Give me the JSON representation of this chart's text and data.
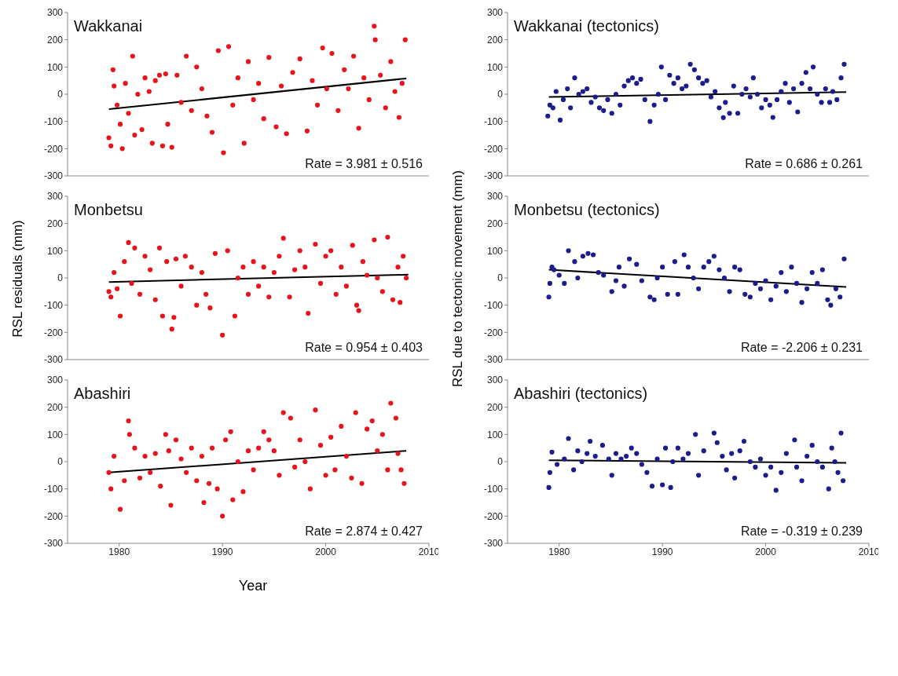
{
  "chart_data": [
    {
      "type": "scatter",
      "title": "Wakkanai",
      "annotations": [
        "Rate = 3.981 ± 0.516"
      ],
      "xlim": [
        1975,
        2010
      ],
      "xticks": [
        1980,
        1990,
        2000,
        2010
      ],
      "ylim": [
        -300,
        300
      ],
      "yticks": [
        -300,
        -200,
        -100,
        0,
        100,
        200,
        300
      ],
      "tick_labels": "y",
      "marker": "circle",
      "series": [
        {
          "color": "#e8141c",
          "x": [
            1979.0,
            1979.2,
            1979.4,
            1979.5,
            1979.8,
            1980.1,
            1980.3,
            1980.6,
            1980.9,
            1981.3,
            1981.5,
            1981.8,
            1982.2,
            1982.5,
            1982.9,
            1983.2,
            1983.5,
            1983.9,
            1984.2,
            1984.5,
            1984.7,
            1985.1,
            1985.6,
            1986.0,
            1986.5,
            1987.0,
            1987.5,
            1988.0,
            1988.5,
            1989.0,
            1989.6,
            1990.1,
            1990.6,
            1991.0,
            1991.5,
            1992.1,
            1992.5,
            1993.0,
            1993.5,
            1994.0,
            1994.5,
            1995.2,
            1995.7,
            1996.2,
            1996.8,
            1997.5,
            1998.2,
            1998.7,
            1999.2,
            1999.7,
            2000.1,
            2000.6,
            2001.2,
            2001.8,
            2002.2,
            2002.7,
            2003.2,
            2003.7,
            2004.2,
            2004.7,
            2004.8,
            2005.3,
            2005.8,
            2006.3,
            2006.7,
            2007.1,
            2007.4,
            2007.7
          ],
          "values": [
            -160,
            -190,
            90,
            30,
            -40,
            -110,
            -200,
            40,
            -70,
            140,
            -150,
            0,
            -130,
            60,
            10,
            -180,
            50,
            70,
            -190,
            75,
            -110,
            -195,
            70,
            -30,
            140,
            -60,
            100,
            20,
            -80,
            -140,
            160,
            -215,
            175,
            -40,
            60,
            -180,
            120,
            -20,
            40,
            -90,
            135,
            -120,
            30,
            -145,
            80,
            130,
            -135,
            50,
            -40,
            170,
            20,
            150,
            -60,
            90,
            20,
            140,
            -125,
            60,
            -20,
            250,
            200,
            70,
            -50,
            120,
            10,
            -85,
            40,
            200
          ]
        },
        {
          "type": "line",
          "marker": "none",
          "color": "#000000",
          "x": [
            1979,
            2007.8
          ],
          "values": [
            -55,
            58
          ]
        }
      ]
    },
    {
      "type": "scatter",
      "title": "Wakkanai (tectonics)",
      "annotations": [
        "Rate = 0.686 ± 0.261"
      ],
      "xlim": [
        1975,
        2010
      ],
      "xticks": [
        1980,
        1990,
        2000,
        2010
      ],
      "ylim": [
        -300,
        300
      ],
      "yticks": [
        -300,
        -200,
        -100,
        0,
        100,
        200,
        300
      ],
      "tick_labels": "y",
      "marker": "circle",
      "series": [
        {
          "color": "#1c1c8c",
          "x": [
            1978.9,
            1979.1,
            1979.4,
            1979.7,
            1980.1,
            1980.4,
            1980.8,
            1981.1,
            1981.5,
            1981.9,
            1982.3,
            1982.7,
            1983.1,
            1983.5,
            1983.9,
            1984.3,
            1984.7,
            1985.1,
            1985.5,
            1985.9,
            1986.3,
            1986.7,
            1987.1,
            1987.5,
            1987.9,
            1988.3,
            1988.8,
            1989.2,
            1989.6,
            1989.9,
            1990.3,
            1990.7,
            1991.1,
            1991.5,
            1991.9,
            1992.3,
            1992.7,
            1993.1,
            1993.5,
            1993.9,
            1994.3,
            1994.7,
            1995.1,
            1995.5,
            1995.9,
            1996.1,
            1996.5,
            1996.9,
            1997.3,
            1997.7,
            1998.1,
            1998.5,
            1998.8,
            1999.2,
            1999.6,
            2000.0,
            2000.4,
            2000.7,
            2001.1,
            2001.5,
            2001.9,
            2002.3,
            2002.7,
            2003.1,
            2003.5,
            2003.9,
            2004.3,
            2004.6,
            2005.0,
            2005.4,
            2005.8,
            2006.2,
            2006.5,
            2006.9,
            2007.3,
            2007.6
          ],
          "values": [
            -80,
            -40,
            -50,
            10,
            -95,
            -20,
            20,
            -50,
            60,
            0,
            10,
            20,
            -30,
            -10,
            -50,
            -60,
            -20,
            -70,
            0,
            -40,
            30,
            50,
            60,
            40,
            55,
            -20,
            -100,
            -40,
            0,
            100,
            -20,
            70,
            40,
            60,
            20,
            30,
            110,
            90,
            60,
            40,
            50,
            -10,
            10,
            -50,
            -86,
            -30,
            -70,
            30,
            -70,
            0,
            20,
            -10,
            60,
            0,
            -50,
            -20,
            -40,
            -85,
            -20,
            10,
            40,
            -30,
            20,
            -65,
            40,
            80,
            20,
            100,
            0,
            -30,
            20,
            -30,
            10,
            -20,
            60,
            110
          ]
        },
        {
          "type": "line",
          "marker": "none",
          "color": "#000000",
          "x": [
            1979,
            2007.8
          ],
          "values": [
            -10,
            8
          ]
        }
      ]
    },
    {
      "type": "scatter",
      "title": "Monbetsu",
      "ylabel": "RSL residuals (mm)",
      "annotations": [
        "Rate = 0.954 ± 0.403"
      ],
      "xlim": [
        1975,
        2010
      ],
      "xticks": [
        1980,
        1990,
        2000,
        2010
      ],
      "ylim": [
        -300,
        300
      ],
      "yticks": [
        -300,
        -200,
        -100,
        0,
        100,
        200,
        300
      ],
      "tick_labels": "y",
      "marker": "circle",
      "series": [
        {
          "color": "#e8141c",
          "x": [
            1979.0,
            1979.2,
            1979.5,
            1979.8,
            1980.1,
            1980.5,
            1980.9,
            1981.2,
            1981.5,
            1982.0,
            1982.5,
            1983.0,
            1983.5,
            1983.9,
            1984.2,
            1984.6,
            1985.1,
            1985.3,
            1985.5,
            1986.0,
            1986.4,
            1987.0,
            1987.5,
            1988.0,
            1988.4,
            1988.8,
            1989.3,
            1990.0,
            1990.5,
            1991.2,
            1991.5,
            1992.0,
            1992.5,
            1993.0,
            1993.5,
            1994.0,
            1994.5,
            1995.0,
            1995.5,
            1995.9,
            1996.5,
            1997.0,
            1997.5,
            1998.0,
            1998.3,
            1999.0,
            1999.5,
            2000.0,
            2000.5,
            2001.0,
            2001.5,
            2002.0,
            2002.6,
            2003.0,
            2003.2,
            2003.6,
            2004.0,
            2004.7,
            2005.0,
            2005.5,
            2006.0,
            2006.5,
            2007.0,
            2007.2,
            2007.5,
            2007.8
          ],
          "values": [
            -50,
            -70,
            20,
            -40,
            -140,
            60,
            130,
            -20,
            110,
            -60,
            80,
            30,
            -80,
            110,
            -140,
            60,
            -188,
            -145,
            70,
            -30,
            80,
            40,
            -100,
            20,
            -60,
            -110,
            90,
            -210,
            100,
            -140,
            0,
            40,
            -60,
            60,
            -30,
            40,
            -70,
            20,
            80,
            146,
            -70,
            30,
            100,
            40,
            -130,
            124,
            -20,
            80,
            100,
            -60,
            40,
            -30,
            120,
            -100,
            -120,
            60,
            10,
            140,
            0,
            -50,
            150,
            -80,
            40,
            -90,
            80,
            0
          ]
        },
        {
          "type": "line",
          "marker": "none",
          "color": "#000000",
          "x": [
            1979,
            2008
          ],
          "values": [
            -15,
            12
          ]
        }
      ]
    },
    {
      "type": "scatter",
      "title": "Monbetsu (tectonics)",
      "ylabel": "RSL due to tectonic movement (mm)",
      "annotations": [
        "Rate = -2.206 ± 0.231"
      ],
      "xlim": [
        1975,
        2010
      ],
      "xticks": [
        1980,
        1990,
        2000,
        2010
      ],
      "ylim": [
        -300,
        300
      ],
      "yticks": [
        -300,
        -200,
        -100,
        0,
        100,
        200,
        300
      ],
      "tick_labels": "y",
      "marker": "circle",
      "series": [
        {
          "color": "#1c1c8c",
          "x": [
            1979.0,
            1979.1,
            1979.3,
            1979.5,
            1980.0,
            1980.5,
            1980.9,
            1981.5,
            1981.8,
            1982.3,
            1982.8,
            1983.3,
            1983.8,
            1984.3,
            1985.1,
            1985.5,
            1985.8,
            1986.3,
            1986.8,
            1987.5,
            1988.0,
            1988.8,
            1989.2,
            1989.5,
            1990.0,
            1990.5,
            1991.2,
            1991.5,
            1992.1,
            1992.5,
            1993.0,
            1993.5,
            1994.0,
            1994.5,
            1995.0,
            1995.5,
            1996.0,
            1996.5,
            1997.0,
            1997.5,
            1998.0,
            1998.5,
            1999.0,
            1999.5,
            2000.0,
            2000.5,
            2001.0,
            2001.5,
            2002.0,
            2002.5,
            2003.0,
            2003.5,
            2004.0,
            2004.5,
            2005.0,
            2005.5,
            2006.0,
            2006.3,
            2006.8,
            2007.2,
            2007.6
          ],
          "values": [
            -70,
            -20,
            40,
            30,
            10,
            -20,
            100,
            60,
            0,
            80,
            90,
            85,
            20,
            10,
            -50,
            -10,
            40,
            -30,
            70,
            50,
            -10,
            -70,
            -80,
            0,
            40,
            -60,
            60,
            -60,
            85,
            40,
            0,
            -40,
            40,
            60,
            80,
            30,
            0,
            -50,
            40,
            30,
            -60,
            -70,
            -20,
            -40,
            -10,
            -80,
            -30,
            20,
            -50,
            40,
            -20,
            -90,
            -40,
            20,
            -20,
            30,
            -80,
            -100,
            -40,
            -70,
            70
          ]
        },
        {
          "type": "line",
          "marker": "none",
          "color": "#000000",
          "x": [
            1979,
            2007.8
          ],
          "values": [
            30,
            -33
          ]
        }
      ]
    },
    {
      "type": "scatter",
      "title": "Abashiri",
      "xlabel": "Year",
      "annotations": [
        "Rate = 2.874 ± 0.427"
      ],
      "xlim": [
        1975,
        2010
      ],
      "xticks": [
        1980,
        1990,
        2000,
        2010
      ],
      "ylim": [
        -300,
        300
      ],
      "yticks": [
        -300,
        -200,
        -100,
        0,
        100,
        200,
        300
      ],
      "marker": "circle",
      "series": [
        {
          "color": "#e8141c",
          "x": [
            1979.0,
            1979.2,
            1979.5,
            1980.1,
            1980.5,
            1980.9,
            1981.0,
            1981.5,
            1982.0,
            1982.5,
            1983.0,
            1983.5,
            1984.0,
            1984.5,
            1984.8,
            1985.0,
            1985.5,
            1986.0,
            1986.5,
            1987.0,
            1987.5,
            1988.0,
            1988.2,
            1988.7,
            1989.0,
            1989.5,
            1990.0,
            1990.3,
            1990.8,
            1991.0,
            1991.5,
            1992.0,
            1992.5,
            1993.0,
            1993.5,
            1994.0,
            1994.5,
            1995.0,
            1995.5,
            1995.9,
            1996.6,
            1997.0,
            1997.5,
            1998.0,
            1998.5,
            1999.0,
            1999.5,
            2000.0,
            2000.5,
            2000.9,
            2001.5,
            2002.0,
            2002.5,
            2002.9,
            2003.5,
            2004.0,
            2004.5,
            2005.0,
            2005.5,
            2006.0,
            2006.3,
            2006.8,
            2007.0,
            2007.3,
            2007.6
          ],
          "values": [
            -40,
            -100,
            20,
            -175,
            -70,
            150,
            100,
            50,
            -60,
            20,
            -40,
            30,
            -90,
            100,
            40,
            -160,
            80,
            10,
            -40,
            50,
            -70,
            20,
            -150,
            -80,
            50,
            -100,
            -200,
            80,
            110,
            -140,
            0,
            -110,
            40,
            -30,
            50,
            110,
            80,
            40,
            -50,
            180,
            160,
            -20,
            80,
            0,
            -100,
            190,
            60,
            -50,
            90,
            -30,
            130,
            20,
            -60,
            180,
            -80,
            120,
            150,
            40,
            100,
            -30,
            215,
            160,
            30,
            -30,
            -80
          ]
        },
        {
          "type": "line",
          "marker": "none",
          "color": "#000000",
          "x": [
            1979,
            2007.8
          ],
          "values": [
            -40,
            40
          ]
        }
      ]
    },
    {
      "type": "scatter",
      "title": "Abashiri (tectonics)",
      "annotations": [
        "Rate = -0.319 ± 0.239"
      ],
      "xlim": [
        1975,
        2010
      ],
      "xticks": [
        1980,
        1990,
        2000,
        2010
      ],
      "ylim": [
        -300,
        300
      ],
      "yticks": [
        -300,
        -200,
        -100,
        0,
        100,
        200,
        300
      ],
      "marker": "circle",
      "series": [
        {
          "color": "#1c1c8c",
          "x": [
            1979.0,
            1979.1,
            1979.3,
            1979.8,
            1980.5,
            1980.9,
            1981.4,
            1981.8,
            1982.2,
            1982.7,
            1983.0,
            1983.5,
            1984.2,
            1984.8,
            1985.1,
            1985.5,
            1986.0,
            1986.5,
            1987.0,
            1987.5,
            1988.0,
            1988.5,
            1989.0,
            1989.5,
            1990.0,
            1990.3,
            1990.8,
            1991.0,
            1991.5,
            1992.0,
            1992.5,
            1993.2,
            1993.5,
            1994.0,
            1995.0,
            1995.3,
            1995.8,
            1996.2,
            1996.7,
            1997.0,
            1997.5,
            1997.9,
            1998.5,
            1999.0,
            1999.5,
            2000.0,
            2000.5,
            2001.0,
            2001.5,
            2002.0,
            2002.8,
            2003.0,
            2003.5,
            2004.0,
            2004.5,
            2005.0,
            2005.5,
            2006.1,
            2006.4,
            2006.7,
            2007.0,
            2007.3,
            2007.5
          ],
          "values": [
            -95,
            -40,
            35,
            -10,
            10,
            85,
            -30,
            40,
            0,
            30,
            75,
            20,
            60,
            10,
            -50,
            30,
            10,
            20,
            50,
            30,
            -10,
            -40,
            -90,
            10,
            -85,
            50,
            -95,
            0,
            50,
            10,
            30,
            100,
            -50,
            40,
            105,
            70,
            20,
            -30,
            30,
            -60,
            40,
            75,
            0,
            -20,
            10,
            -50,
            -20,
            -105,
            -40,
            30,
            80,
            -20,
            -70,
            20,
            60,
            0,
            -20,
            -100,
            50,
            0,
            -40,
            105,
            -70
          ]
        },
        {
          "type": "line",
          "marker": "none",
          "color": "#000000",
          "x": [
            1979,
            2007.8
          ],
          "values": [
            5,
            -4
          ]
        }
      ]
    }
  ]
}
